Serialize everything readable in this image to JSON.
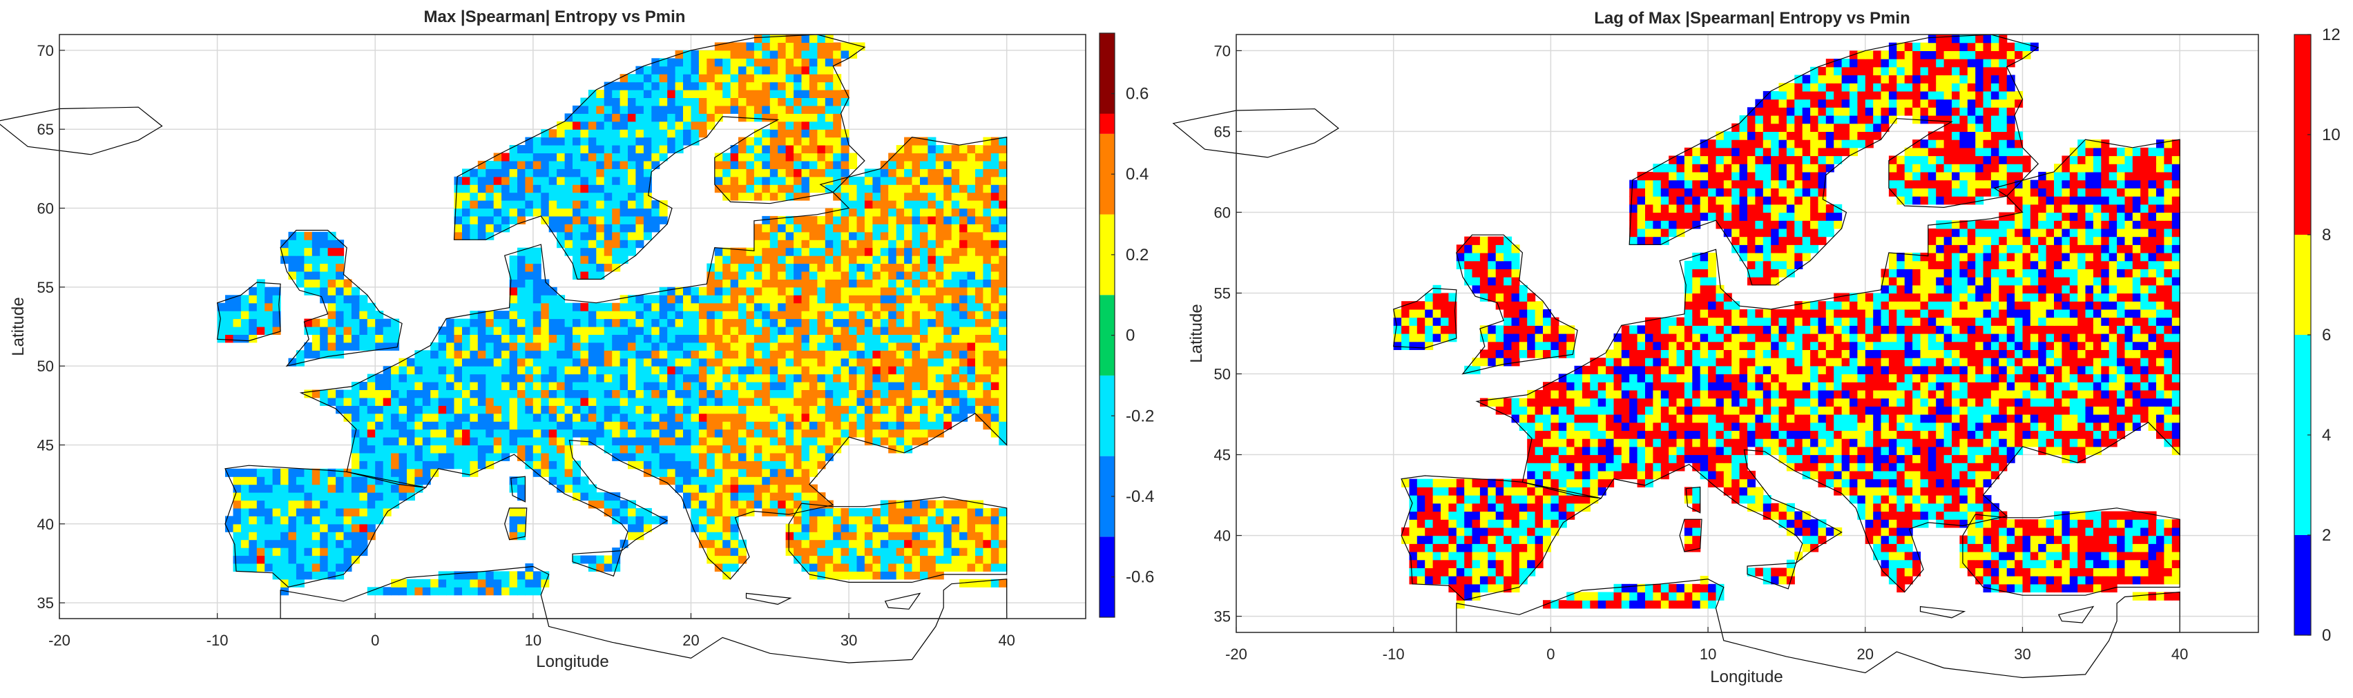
{
  "figure": {
    "panels": [
      {
        "title": "Max |Spearman| Entropy vs Pmin",
        "xlabel": "Longitude",
        "ylabel": "Latitude",
        "xticks": [
          "-20",
          "-10",
          "0",
          "10",
          "20",
          "30",
          "40"
        ],
        "yticks": [
          "35",
          "40",
          "45",
          "50",
          "55",
          "60",
          "65",
          "70"
        ],
        "colorbar_ticks": [
          "-0.6",
          "-0.4",
          "-0.2",
          "0",
          "0.2",
          "0.4",
          "0.6"
        ]
      },
      {
        "title": "Lag of Max |Spearman| Entropy vs Pmin",
        "xlabel": "Longitude",
        "ylabel": "Latitude",
        "xticks": [
          "-20",
          "-10",
          "0",
          "10",
          "20",
          "30",
          "40"
        ],
        "yticks": [
          "35",
          "40",
          "45",
          "50",
          "55",
          "60",
          "65",
          "70"
        ],
        "colorbar_ticks": [
          "0",
          "2",
          "4",
          "6",
          "8",
          "10",
          "12"
        ]
      }
    ]
  },
  "chart_data": [
    {
      "type": "heatmap",
      "title": "Max |Spearman| Entropy vs Pmin",
      "xlabel": "Longitude",
      "ylabel": "Latitude",
      "xlim": [
        -20,
        45
      ],
      "ylim": [
        34,
        71
      ],
      "grid": true,
      "colorbar": {
        "position": "right",
        "range": [
          -0.7,
          0.75
        ],
        "boundaries": [
          -0.7,
          -0.5,
          -0.3,
          -0.1,
          0.1,
          0.3,
          0.5,
          0.75
        ],
        "colors": [
          "#0000ff",
          "#0080ff",
          "#00e5ff",
          "#00d060",
          "#ffff00",
          "#ff8000",
          "#ff0000"
        ],
        "top_color": "#8b0000"
      },
      "notes": "Gridded cell values over Europe; dominant classes are 0.2 to 0.4 (orange) and -0.2 to -0.4 (blue/cyan)."
    },
    {
      "type": "heatmap",
      "title": "Lag of Max |Spearman| Entropy vs Pmin",
      "xlabel": "Longitude",
      "ylabel": "Latitude",
      "xlim": [
        -20,
        45
      ],
      "ylim": [
        34,
        71
      ],
      "grid": true,
      "colorbar": {
        "position": "right",
        "range": [
          0,
          12
        ],
        "boundaries": [
          0,
          2,
          6,
          8,
          12
        ],
        "colors": [
          "#0000ff",
          "#00ffff",
          "#ffff00",
          "#ff0000"
        ]
      },
      "notes": "Gridded lag values over Europe; mixture of red, yellow, cyan and blue cells."
    }
  ]
}
